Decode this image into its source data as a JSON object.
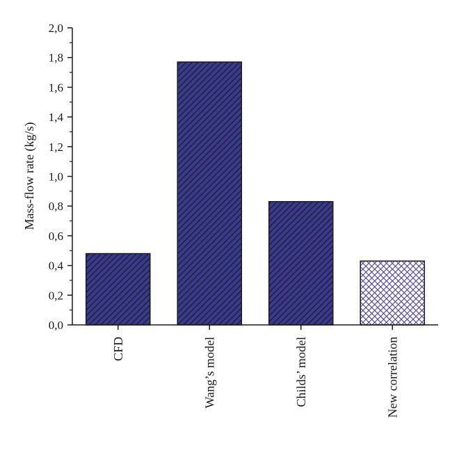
{
  "chart_data": {
    "type": "bar",
    "categories": [
      "CFD",
      "Wang’s model",
      "Childs’ model",
      "New correlation"
    ],
    "values": [
      0.48,
      1.77,
      0.83,
      0.43
    ],
    "patterns": [
      "diagonal-hatch",
      "diagonal-hatch",
      "diagonal-hatch",
      "crosshatch"
    ],
    "title": "",
    "xlabel": "",
    "ylabel": "Mass-flow rate (kg/s)",
    "ylim": [
      0,
      2.0
    ],
    "yticks": [
      "0,0",
      "0,2",
      "0,4",
      "0,6",
      "0,8",
      "1,0",
      "1,2",
      "1,4",
      "1,6",
      "1,8",
      "2,0"
    ],
    "grid": false,
    "legend": "none"
  },
  "colors": {
    "bar_fill": "#3a3a8c",
    "hatch_line": "#1c1c30",
    "crosshatch_fill": "#ffffff",
    "crosshatch_line": "#4a3aa0",
    "axis": "#1a1a1a"
  }
}
